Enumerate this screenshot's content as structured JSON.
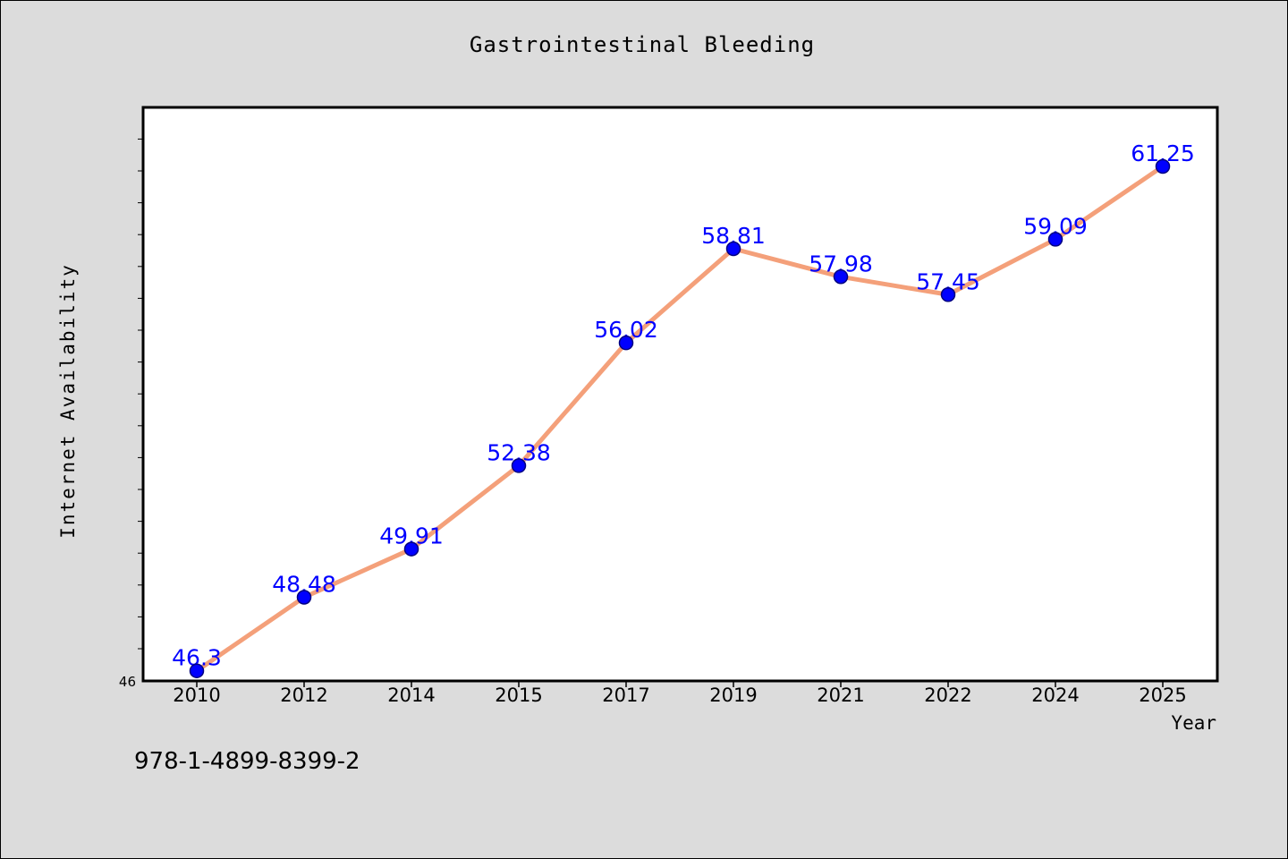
{
  "chart_data": {
    "type": "line",
    "title": "Gastrointestinal Bleeding",
    "xlabel": "Year",
    "ylabel": "Internet Availability",
    "categories": [
      "2010",
      "2012",
      "2014",
      "2015",
      "2017",
      "2019",
      "2021",
      "2022",
      "2024",
      "2025"
    ],
    "series": [
      {
        "values": [
          46.3,
          48.48,
          49.91,
          52.38,
          56.02,
          58.81,
          57.98,
          57.45,
          59.09,
          61.25
        ],
        "labels": [
          "46.3",
          "48.48",
          "49.91",
          "52.38",
          "56.02",
          "58.81",
          "57.98",
          "57.45",
          "59.09",
          "61.25"
        ]
      }
    ],
    "y_tick_label": "46",
    "ylim": [
      46,
      63
    ],
    "grid": false,
    "colors": {
      "line": "#f4a07a",
      "marker": "#0000ff",
      "marker_edge": "#000080",
      "data_label": "#0000ff",
      "plot_background": "#ffffff",
      "figure_background": "#dcdcdc"
    }
  },
  "footnote": "978-1-4899-8399-2"
}
